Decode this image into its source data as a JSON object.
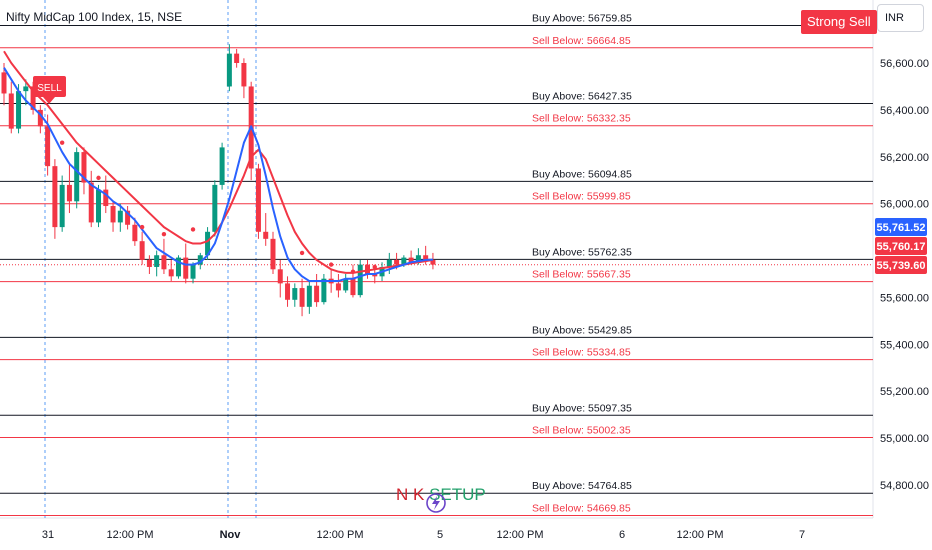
{
  "header": {
    "title": "Nifty MidCap 100 Index, 15, NSE",
    "signal_badge": "Strong Sell",
    "currency": "INR"
  },
  "colors": {
    "up": "#089981",
    "down": "#f23645",
    "fast_ma": "#2962ff",
    "slow_ma": "#f23645",
    "buy_line": "#131722",
    "sell_line": "#f23645",
    "blue_tag": "#2962ff"
  },
  "chart_data": {
    "type": "candlestick",
    "title": "Nifty MidCap 100 Index, 15, NSE",
    "y_range": [
      54700,
      56760
    ],
    "y_ticks": [
      "56,600.00",
      "56,400.00",
      "56,200.00",
      "56,000.00",
      "55,600.00",
      "55,400.00",
      "55,200.00",
      "55,000.00",
      "54,800.00"
    ],
    "x_ticks": [
      "31",
      "12:00 PM",
      "Nov",
      "12:00 PM",
      "5",
      "12:00 PM",
      "6",
      "12:00 PM",
      "7"
    ],
    "levels": [
      {
        "kind": "buy",
        "label": "Buy Above: 56759.85",
        "value": 56759.85
      },
      {
        "kind": "sell",
        "label": "Sell Below: 56664.85",
        "value": 56664.85
      },
      {
        "kind": "buy",
        "label": "Buy Above: 56427.35",
        "value": 56427.35
      },
      {
        "kind": "sell",
        "label": "Sell Below: 56332.35",
        "value": 56332.35
      },
      {
        "kind": "buy",
        "label": "Buy Above: 56094.85",
        "value": 56094.85
      },
      {
        "kind": "sell",
        "label": "Sell Below: 55999.85",
        "value": 55999.85
      },
      {
        "kind": "buy",
        "label": "Buy Above: 55762.35",
        "value": 55762.35
      },
      {
        "kind": "sell",
        "label": "Sell Below: 55667.35",
        "value": 55667.35
      },
      {
        "kind": "buy",
        "label": "Buy Above: 55429.85",
        "value": 55429.85
      },
      {
        "kind": "sell",
        "label": "Sell Below: 55334.85",
        "value": 55334.85
      },
      {
        "kind": "buy",
        "label": "Buy Above: 55097.35",
        "value": 55097.35
      },
      {
        "kind": "sell",
        "label": "Sell Below: 55002.35",
        "value": 55002.35
      },
      {
        "kind": "buy",
        "label": "Buy Above: 54764.85",
        "value": 54764.85
      },
      {
        "kind": "sell",
        "label": "Sell Below: 54669.85",
        "value": 54669.85
      }
    ],
    "price_tags": [
      {
        "label": "55,761.52",
        "value": 55761.52,
        "color": "#2962ff"
      },
      {
        "label": "55,760.17",
        "value": 55760.17,
        "color": "#f23645"
      },
      {
        "label": "55,739.60",
        "value": 55739.6,
        "color": "#f23645"
      }
    ],
    "sell_marker": "SELL",
    "watermark": {
      "part1": "N K",
      "part2": "SETUP"
    },
    "candles": [
      [
        56560,
        56600,
        56420,
        56470
      ],
      [
        56470,
        56520,
        56300,
        56320
      ],
      [
        56320,
        56510,
        56300,
        56480
      ],
      [
        56480,
        56530,
        56420,
        56500
      ],
      [
        56500,
        56520,
        56380,
        56400
      ],
      [
        56400,
        56420,
        56300,
        56330
      ],
      [
        56330,
        56380,
        56120,
        56160
      ],
      [
        56160,
        56190,
        55850,
        55900
      ],
      [
        55900,
        56120,
        55880,
        56080
      ],
      [
        56080,
        56170,
        55960,
        56010
      ],
      [
        56010,
        56240,
        55980,
        56220
      ],
      [
        56220,
        56240,
        56040,
        56090
      ],
      [
        56090,
        56140,
        55900,
        55920
      ],
      [
        55920,
        56080,
        55900,
        56060
      ],
      [
        56060,
        56120,
        55960,
        55990
      ],
      [
        55990,
        56010,
        55880,
        55920
      ],
      [
        55920,
        56000,
        55880,
        55970
      ],
      [
        55970,
        55990,
        55890,
        55910
      ],
      [
        55910,
        55940,
        55820,
        55840
      ],
      [
        55840,
        55880,
        55740,
        55760
      ],
      [
        55760,
        55780,
        55700,
        55730
      ],
      [
        55730,
        55800,
        55690,
        55780
      ],
      [
        55780,
        55850,
        55700,
        55720
      ],
      [
        55720,
        55760,
        55670,
        55690
      ],
      [
        55690,
        55780,
        55680,
        55770
      ],
      [
        55770,
        55830,
        55660,
        55680
      ],
      [
        55680,
        55750,
        55660,
        55740
      ],
      [
        55740,
        55790,
        55720,
        55780
      ],
      [
        55780,
        55900,
        55760,
        55880
      ],
      [
        55880,
        56100,
        55860,
        56080
      ],
      [
        56080,
        56260,
        56060,
        56240
      ],
      [
        56500,
        56680,
        56480,
        56640
      ],
      [
        56640,
        56660,
        56580,
        56600
      ],
      [
        56600,
        56620,
        56450,
        56500
      ],
      [
        56500,
        56520,
        56100,
        56150
      ],
      [
        56150,
        56170,
        55850,
        55880
      ],
      [
        55880,
        55960,
        55820,
        55850
      ],
      [
        55850,
        55880,
        55700,
        55720
      ],
      [
        55720,
        55760,
        55600,
        55660
      ],
      [
        55660,
        55690,
        55560,
        55590
      ],
      [
        55590,
        55660,
        55560,
        55640
      ],
      [
        55640,
        55680,
        55520,
        55560
      ],
      [
        55560,
        55670,
        55530,
        55650
      ],
      [
        55650,
        55700,
        55560,
        55580
      ],
      [
        55580,
        55700,
        55570,
        55680
      ],
      [
        55680,
        55720,
        55620,
        55660
      ],
      [
        55660,
        55700,
        55600,
        55630
      ],
      [
        55630,
        55700,
        55620,
        55680
      ],
      [
        55680,
        55740,
        55600,
        55610
      ],
      [
        55610,
        55760,
        55600,
        55740
      ],
      [
        55740,
        55760,
        55680,
        55700
      ],
      [
        55700,
        55740,
        55660,
        55690
      ],
      [
        55690,
        55750,
        55670,
        55730
      ],
      [
        55730,
        55790,
        55700,
        55760
      ],
      [
        55760,
        55790,
        55720,
        55740
      ],
      [
        55740,
        55780,
        55730,
        55770
      ],
      [
        55770,
        55800,
        55740,
        55750
      ],
      [
        55750,
        55810,
        55740,
        55780
      ],
      [
        55780,
        55820,
        55740,
        55760
      ],
      [
        55760,
        55790,
        55720,
        55740
      ]
    ],
    "fast_ma": [
      56580,
      56530,
      56480,
      56440,
      56410,
      56380,
      56340,
      56280,
      56220,
      56170,
      56140,
      56110,
      56080,
      56060,
      56040,
      56010,
      55990,
      55960,
      55930,
      55890,
      55850,
      55810,
      55790,
      55770,
      55750,
      55740,
      55740,
      55750,
      55780,
      55830,
      55920,
      56020,
      56140,
      56260,
      56330,
      56250,
      56120,
      55980,
      55860,
      55770,
      55720,
      55690,
      55670,
      55670,
      55670,
      55670,
      55670,
      55680,
      55680,
      55690,
      55700,
      55700,
      55710,
      55720,
      55730,
      55740,
      55750,
      55755,
      55760,
      55761.52
    ],
    "slow_ma": [
      56650,
      56600,
      56560,
      56520,
      56480,
      56450,
      56420,
      56380,
      56340,
      56300,
      56260,
      56230,
      56200,
      56170,
      56140,
      56110,
      56080,
      56050,
      56020,
      55990,
      55960,
      55930,
      55900,
      55880,
      55860,
      55840,
      55830,
      55830,
      55840,
      55870,
      55920,
      55980,
      56050,
      56120,
      56200,
      56230,
      56190,
      56110,
      56030,
      55950,
      55880,
      55830,
      55790,
      55760,
      55740,
      55720,
      55710,
      55705,
      55705,
      55710,
      55715,
      55720,
      55725,
      55730,
      55735,
      55740,
      55745,
      55750,
      55755,
      55760.17
    ],
    "signal_dots": [
      [
        8,
        56260
      ],
      [
        13,
        56110
      ],
      [
        19,
        55900
      ],
      [
        22,
        55870
      ],
      [
        26,
        55890
      ],
      [
        41,
        55790
      ],
      [
        45,
        55740
      ],
      [
        48,
        55710
      ],
      [
        51,
        55730
      ]
    ]
  }
}
